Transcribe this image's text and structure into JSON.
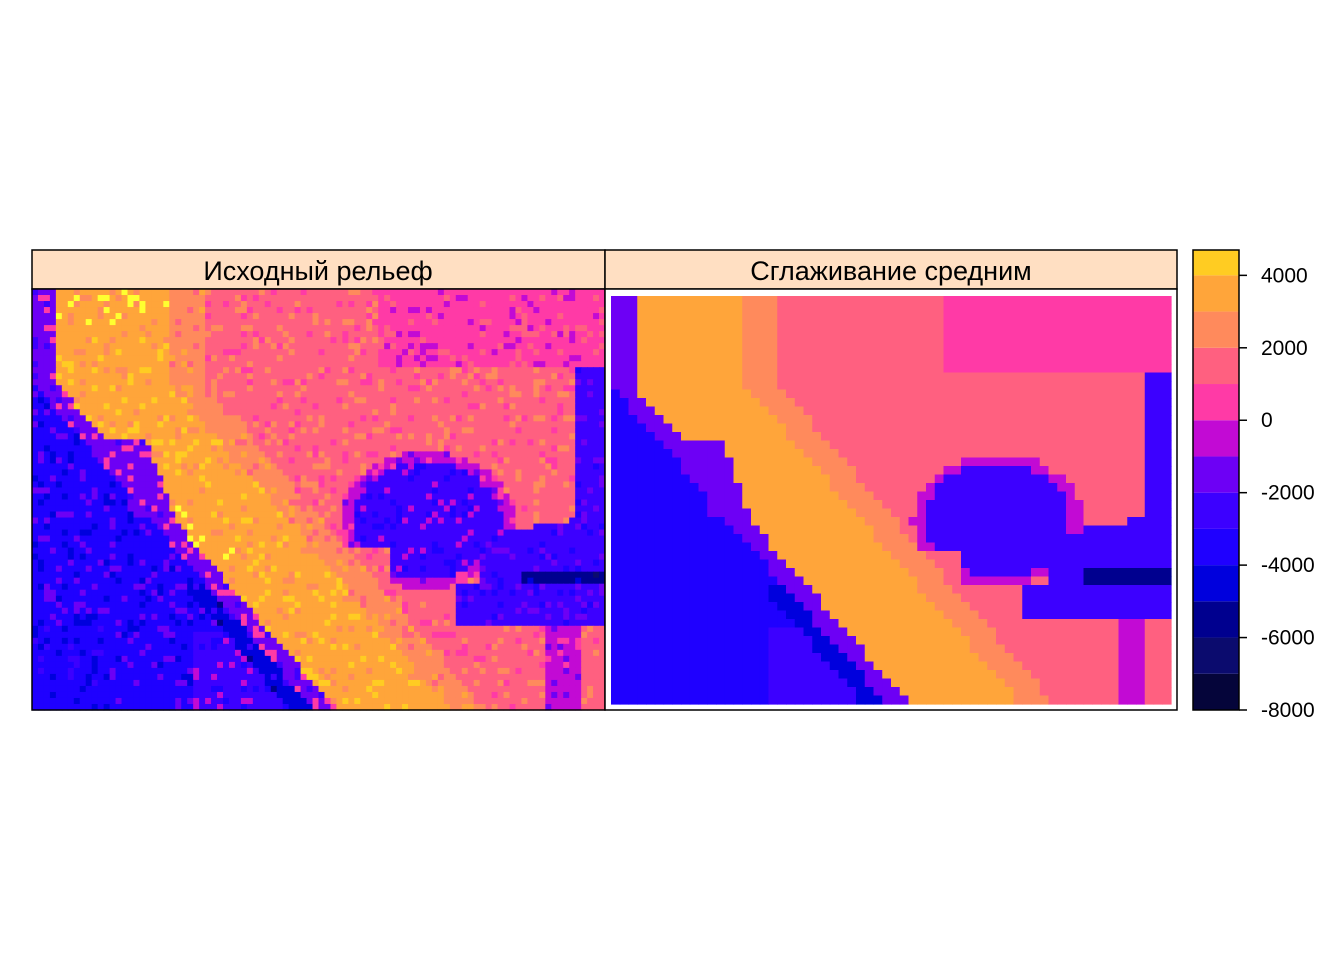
{
  "chart_data": {
    "type": "heatmap",
    "panels": [
      {
        "title": "Исходный рельеф",
        "smoothed": false
      },
      {
        "title": "Сглаживание средним",
        "smoothed": true
      }
    ],
    "colorbar": {
      "ticks": [
        4000,
        2000,
        0,
        -2000,
        -4000,
        -6000,
        -8000
      ],
      "tick_labels": [
        "4000",
        "2000",
        "0",
        "-2000",
        "-4000",
        "-6000",
        "-8000"
      ],
      "range": [
        -8000,
        4700
      ],
      "levels": [
        -8000,
        -7000,
        -6000,
        -5000,
        -4000,
        -3000,
        -2000,
        -1000,
        0,
        1000,
        2000,
        3000,
        4000
      ],
      "colors": [
        "#05053a",
        "#0b0b6e",
        "#00008f",
        "#0000dd",
        "#1f00ff",
        "#3c00ff",
        "#6d00f5",
        "#c20ad4",
        "#ff3aa6",
        "#ff6080",
        "#ff8a5c",
        "#ffa53a",
        "#ffcc22",
        "#ffff30"
      ]
    },
    "strip_color": "#ffdfc2",
    "grid": false
  }
}
